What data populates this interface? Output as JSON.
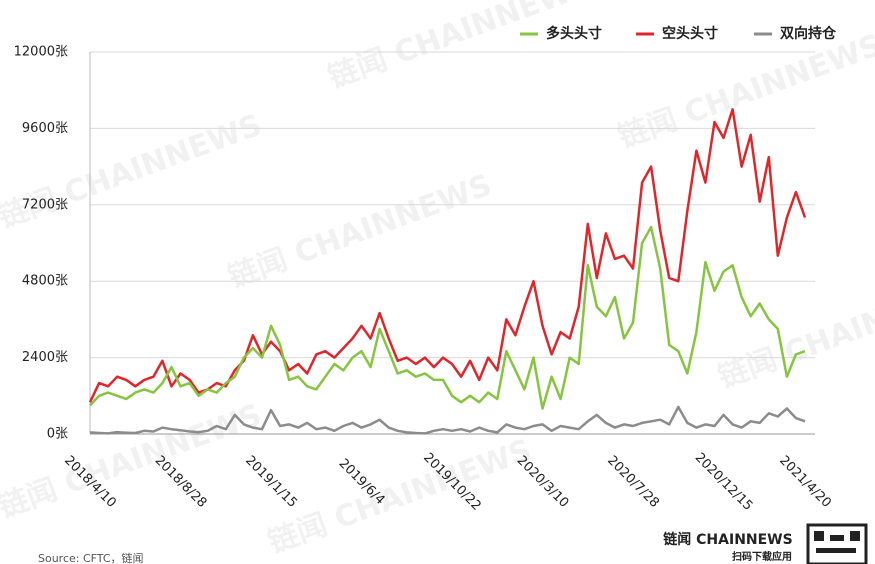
{
  "chart_data": {
    "type": "line",
    "categories": [
      "2018/4/10",
      null,
      null,
      null,
      null,
      null,
      null,
      null,
      null,
      null,
      "2018/8/28",
      null,
      null,
      null,
      null,
      null,
      null,
      null,
      null,
      null,
      "2019/1/15",
      null,
      null,
      null,
      null,
      null,
      null,
      null,
      null,
      null,
      "2019/6/4",
      null,
      null,
      null,
      null,
      null,
      null,
      null,
      null,
      null,
      "2019/10/22",
      null,
      null,
      null,
      null,
      null,
      null,
      null,
      null,
      null,
      "2020/3/10",
      null,
      null,
      null,
      null,
      null,
      null,
      null,
      null,
      null,
      "2020/7/28",
      null,
      null,
      null,
      null,
      null,
      null,
      null,
      null,
      null,
      "2020/12/15",
      null,
      null,
      null,
      null,
      null,
      null,
      null,
      null,
      "2021/4/20"
    ],
    "series": [
      {
        "name": "多头头寸",
        "color": "#86c540",
        "values": [
          900,
          1200,
          1300,
          1200,
          1100,
          1300,
          1400,
          1300,
          1600,
          2100,
          1500,
          1600,
          1200,
          1400,
          1300,
          1600,
          1800,
          2400,
          2700,
          2400,
          3400,
          2800,
          1700,
          1800,
          1500,
          1400,
          1800,
          2200,
          2000,
          2400,
          2600,
          2100,
          3300,
          2600,
          1900,
          2000,
          1800,
          1900,
          1700,
          1700,
          1200,
          1000,
          1200,
          1000,
          1300,
          1100,
          2600,
          2000,
          1400,
          2400,
          800,
          1800,
          1100,
          2400,
          2200,
          5300,
          4000,
          3700,
          4300,
          3000,
          3500,
          6000,
          6500,
          5200,
          2800,
          2600,
          1900,
          3200,
          5400,
          4500,
          5100,
          5300,
          4300,
          3700,
          4100,
          3600,
          3300,
          1800,
          2500,
          2600
        ]
      },
      {
        "name": "空头头寸",
        "color": "#e0262a",
        "values": [
          1000,
          1600,
          1500,
          1800,
          1700,
          1500,
          1700,
          1800,
          2300,
          1500,
          1900,
          1700,
          1300,
          1400,
          1600,
          1500,
          2000,
          2300,
          3100,
          2500,
          2900,
          2600,
          2000,
          2200,
          1900,
          2500,
          2600,
          2400,
          2700,
          3000,
          3400,
          3000,
          3800,
          3000,
          2300,
          2400,
          2200,
          2400,
          2100,
          2400,
          2200,
          1800,
          2300,
          1700,
          2400,
          2000,
          3600,
          3100,
          4000,
          4800,
          3400,
          2500,
          3200,
          3000,
          4000,
          6600,
          4900,
          6300,
          5500,
          5600,
          5200,
          7900,
          8400,
          6400,
          4900,
          4800,
          7000,
          8900,
          7900,
          9800,
          9300,
          10200,
          8400,
          9400,
          7300,
          8700,
          5600,
          6800,
          7600,
          6800
        ]
      },
      {
        "name": "双向持仓",
        "color": "#8c8c8c",
        "values": [
          50,
          30,
          20,
          60,
          40,
          30,
          100,
          80,
          200,
          150,
          120,
          80,
          60,
          100,
          250,
          150,
          600,
          300,
          200,
          150,
          750,
          250,
          300,
          200,
          350,
          150,
          200,
          100,
          250,
          350,
          200,
          300,
          450,
          200,
          100,
          50,
          30,
          20,
          100,
          150,
          100,
          150,
          80,
          200,
          100,
          50,
          300,
          200,
          150,
          250,
          300,
          100,
          250,
          200,
          150,
          400,
          600,
          350,
          200,
          300,
          250,
          350,
          400,
          450,
          300,
          850,
          350,
          200,
          300,
          250,
          600,
          300,
          200,
          400,
          350,
          650,
          550,
          800,
          500,
          400
        ]
      }
    ],
    "ylim": [
      0,
      12000
    ],
    "yticks": [
      {
        "value": 0,
        "label": "0张"
      },
      {
        "value": 2400,
        "label": "2400张"
      },
      {
        "value": 4800,
        "label": "4800张"
      },
      {
        "value": 7200,
        "label": "7200张"
      },
      {
        "value": 9600,
        "label": "9600张"
      },
      {
        "value": 12000,
        "label": "12000张"
      }
    ],
    "grid": true,
    "legend": "top-right"
  },
  "footer": {
    "source": "Source: CFTC，链闻",
    "brand": "链闻 CHAINNEWS",
    "brand_sub": "扫码下载应用",
    "watermark": "链闻 CHAINNEWS"
  }
}
